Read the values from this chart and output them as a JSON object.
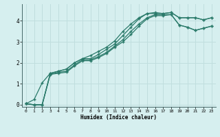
{
  "xlabel": "Humidex (Indice chaleur)",
  "bg_color": "#d6efef",
  "grid_color": "#c0dede",
  "line_color": "#2a7a6a",
  "x_values": [
    0,
    1,
    2,
    3,
    4,
    5,
    6,
    7,
    8,
    9,
    10,
    11,
    12,
    13,
    14,
    15,
    16,
    17,
    18,
    19,
    20,
    21,
    22,
    23
  ],
  "lines": [
    [
      0.05,
      0.25,
      1.05,
      1.5,
      1.6,
      1.7,
      2.0,
      2.2,
      2.35,
      2.55,
      2.75,
      3.05,
      3.5,
      3.85,
      4.15,
      4.35,
      4.4,
      4.35,
      4.4,
      4.15,
      4.15,
      4.15,
      4.05,
      4.15
    ],
    [
      0.05,
      0.0,
      0.0,
      1.5,
      1.6,
      1.7,
      2.0,
      2.2,
      2.2,
      2.4,
      2.65,
      2.9,
      3.3,
      3.7,
      4.1,
      4.35,
      4.35,
      4.35,
      4.4,
      4.15,
      4.15,
      4.15,
      4.05,
      4.15
    ],
    [
      0.05,
      0.0,
      0.0,
      1.45,
      1.55,
      1.6,
      1.9,
      2.15,
      2.15,
      2.3,
      2.5,
      2.8,
      3.1,
      3.5,
      3.85,
      4.15,
      4.3,
      4.3,
      4.3,
      3.8,
      3.7,
      3.55,
      3.65,
      3.75
    ],
    [
      0.05,
      0.0,
      0.0,
      1.45,
      1.5,
      1.55,
      1.85,
      2.1,
      2.1,
      2.25,
      2.45,
      2.75,
      3.0,
      3.35,
      3.75,
      4.1,
      4.25,
      4.25,
      4.3,
      3.8,
      3.7,
      3.55,
      3.65,
      3.75
    ]
  ],
  "ylim": [
    -0.1,
    4.8
  ],
  "xlim": [
    -0.5,
    23.5
  ],
  "yticks": [
    0,
    1,
    2,
    3,
    4
  ],
  "xticks": [
    0,
    1,
    2,
    3,
    4,
    5,
    6,
    7,
    8,
    9,
    10,
    11,
    12,
    13,
    14,
    15,
    16,
    17,
    18,
    19,
    20,
    21,
    22,
    23
  ],
  "marker": "+",
  "markersize": 3.5,
  "linewidth": 0.9
}
